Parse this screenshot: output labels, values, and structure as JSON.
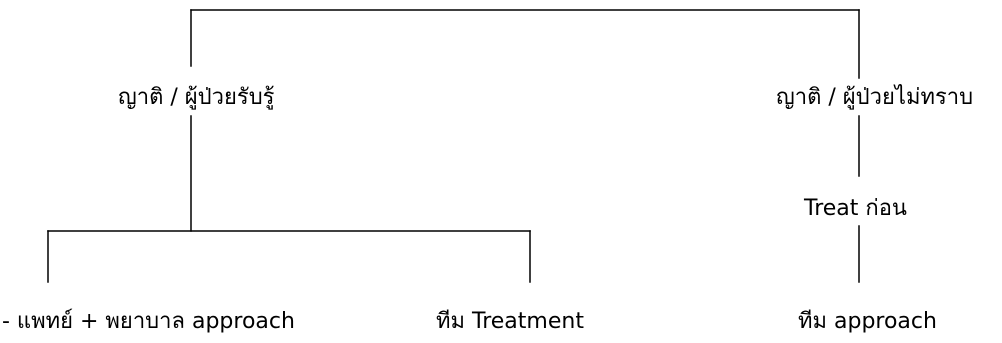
{
  "diagram": {
    "line_color": "#000000",
    "text_color": "#000000",
    "nodes": {
      "left_branch": "ญาติ / ผู้ป่วยรับรู้",
      "right_branch": "ญาติ / ผู้ป่วยไม่ทราบ",
      "treat_first": "Treat ก่อน",
      "doctor_nurse": "- แพทย์ + พยาบาล approach",
      "treatment_team": "ทีม Treatment",
      "approach_team": "ทีม approach"
    }
  }
}
